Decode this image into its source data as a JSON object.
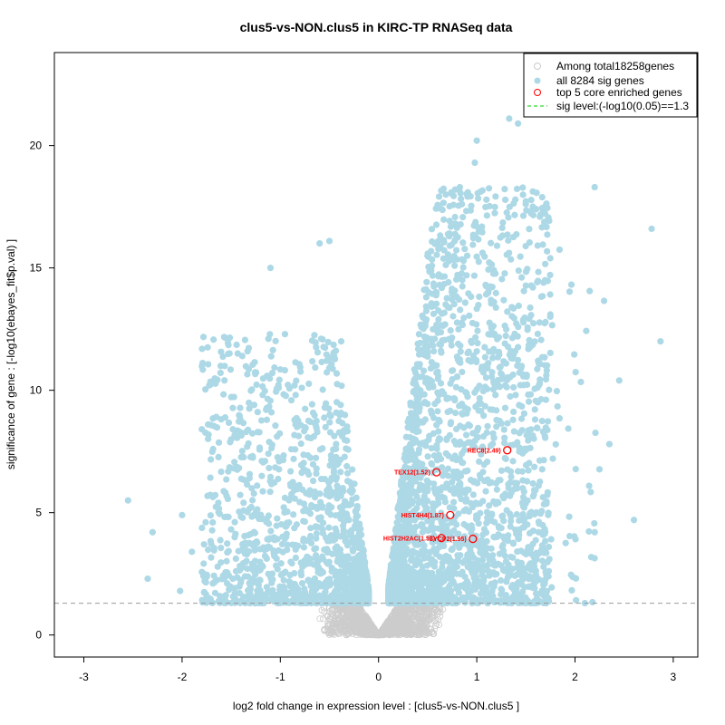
{
  "chart_data": {
    "type": "scatter",
    "title": "clus5-vs-NON.clus5 in KIRC-TP RNASeq data",
    "xlabel": "log2 fold change in expression level : [clus5-vs-NON.clus5 ]",
    "ylabel": "significance of gene : [-log10(ebayes_fit$p.val) ]",
    "xlim": [
      -3.3,
      3.25
    ],
    "ylim": [
      -0.9,
      23.8
    ],
    "xticks": [
      -3,
      -2,
      -1,
      0,
      1,
      2,
      3
    ],
    "yticks": [
      0,
      5,
      10,
      15,
      20
    ],
    "grid": false,
    "threshold": {
      "y": 1.3,
      "color": "#999999"
    },
    "legend": {
      "placement": "top-right",
      "entries": [
        {
          "label": "Among total18258genes",
          "color": "#cccccc",
          "marker": "open-circle"
        },
        {
          "label": "all 8284 sig genes",
          "color": "#add8e6",
          "marker": "filled-circle"
        },
        {
          "label": "top 5 core enriched genes",
          "color": "#ff0000",
          "marker": "open-circle"
        },
        {
          "label": "sig level:(-log10(0.05)==1.3",
          "color": "#00cc00",
          "marker": "dashed-line"
        }
      ]
    },
    "series": [
      {
        "name": "total genes",
        "count": 18258,
        "color": "#cccccc"
      },
      {
        "name": "sig genes",
        "count": 8284,
        "color": "#add8e6",
        "notable_points": [
          [
            -2.55,
            5.5
          ],
          [
            -2.35,
            2.3
          ],
          [
            -2.3,
            4.2
          ],
          [
            -2.02,
            1.8
          ],
          [
            -2.0,
            4.9
          ],
          [
            -1.9,
            3.4
          ],
          [
            -1.1,
            15.0
          ],
          [
            -0.6,
            16.0
          ],
          [
            -0.5,
            16.1
          ],
          [
            -0.38,
            12.0
          ],
          [
            1.33,
            21.1
          ],
          [
            1.0,
            20.2
          ],
          [
            0.98,
            19.3
          ],
          [
            1.42,
            20.9
          ],
          [
            0.78,
            18.2
          ],
          [
            2.2,
            18.3
          ],
          [
            2.78,
            16.6
          ],
          [
            2.87,
            12.0
          ],
          [
            2.6,
            4.7
          ],
          [
            2.35,
            7.8
          ],
          [
            2.45,
            10.4
          ],
          [
            2.2,
            4.2
          ]
        ]
      },
      {
        "name": "top 5 core enriched genes",
        "color": "#ff0000",
        "points": [
          {
            "label": "REC8(2.49)",
            "x": 1.31,
            "y": 7.55
          },
          {
            "label": "TEX12(1.52)",
            "x": 0.59,
            "y": 6.65
          },
          {
            "label": "HIST4H4(1.87)",
            "x": 0.73,
            "y": 4.9
          },
          {
            "label": "HIST2H2AC(1.57)",
            "x": 0.64,
            "y": 3.96
          },
          {
            "label": "SYCP2(1.95)",
            "x": 0.96,
            "y": 3.93
          }
        ]
      }
    ]
  }
}
